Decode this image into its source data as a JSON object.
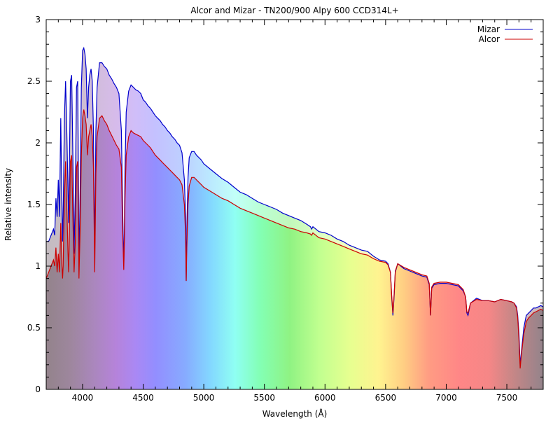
{
  "chart_data": {
    "type": "area",
    "title": "Alcor and Mizar - TN200/900 Alpy 600 CCD314L+",
    "xlabel": "Wavelength (Å)",
    "ylabel": "Relative intensity",
    "xlim": [
      3700,
      7800
    ],
    "ylim": [
      0,
      3
    ],
    "x_ticks": [
      {
        "value": 4000,
        "label": "4000"
      },
      {
        "value": 4500,
        "label": "4500"
      },
      {
        "value": 5000,
        "label": "5000"
      },
      {
        "value": 5500,
        "label": "5500"
      },
      {
        "value": 6000,
        "label": "6000"
      },
      {
        "value": 6500,
        "label": "6500"
      },
      {
        "value": 7000,
        "label": "7000"
      },
      {
        "value": 7500,
        "label": "7500"
      }
    ],
    "y_ticks": [
      {
        "value": 0,
        "label": "0"
      },
      {
        "value": 0.5,
        "label": "0.5"
      },
      {
        "value": 1,
        "label": "1"
      },
      {
        "value": 1.5,
        "label": "1.5"
      },
      {
        "value": 2,
        "label": "2"
      },
      {
        "value": 2.5,
        "label": "2.5"
      },
      {
        "value": 3,
        "label": "3"
      }
    ],
    "legend_position": "top-right",
    "background_fill": "spectrum-colored gradient under each curve",
    "series": [
      {
        "name": "Mizar",
        "color": "#0000cc",
        "x": [
          3700,
          3720,
          3740,
          3760,
          3770,
          3780,
          3790,
          3800,
          3810,
          3820,
          3830,
          3835,
          3840,
          3850,
          3860,
          3870,
          3880,
          3885,
          3890,
          3900,
          3910,
          3920,
          3930,
          3940,
          3950,
          3960,
          3965,
          3970,
          3980,
          3990,
          4000,
          4010,
          4020,
          4030,
          4040,
          4050,
          4060,
          4070,
          4080,
          4090,
          4100,
          4110,
          4120,
          4140,
          4160,
          4180,
          4200,
          4220,
          4240,
          4260,
          4280,
          4300,
          4320,
          4330,
          4340,
          4345,
          4350,
          4360,
          4380,
          4400,
          4420,
          4440,
          4460,
          4480,
          4500,
          4520,
          4540,
          4560,
          4580,
          4600,
          4620,
          4640,
          4660,
          4680,
          4700,
          4720,
          4740,
          4760,
          4780,
          4800,
          4820,
          4840,
          4850,
          4855,
          4860,
          4870,
          4880,
          4900,
          4920,
          4940,
          4960,
          4980,
          5000,
          5050,
          5100,
          5150,
          5200,
          5250,
          5300,
          5350,
          5400,
          5450,
          5500,
          5550,
          5600,
          5650,
          5700,
          5750,
          5800,
          5850,
          5880,
          5890,
          5900,
          5950,
          6000,
          6050,
          6100,
          6150,
          6200,
          6250,
          6300,
          6350,
          6400,
          6450,
          6500,
          6520,
          6540,
          6550,
          6560,
          6570,
          6580,
          6600,
          6650,
          6700,
          6750,
          6800,
          6840,
          6860,
          6870,
          6880,
          6900,
          6950,
          7000,
          7050,
          7100,
          7140,
          7160,
          7170,
          7180,
          7200,
          7250,
          7300,
          7350,
          7400,
          7450,
          7500,
          7540,
          7560,
          7580,
          7590,
          7600,
          7610,
          7620,
          7640,
          7660,
          7680,
          7700,
          7720,
          7740,
          7760,
          7780,
          7800
        ],
        "y": [
          1.2,
          1.2,
          1.25,
          1.3,
          1.25,
          1.55,
          1.4,
          1.7,
          1.4,
          2.2,
          1.5,
          1.2,
          1.4,
          2.2,
          2.5,
          2.1,
          1.6,
          1.35,
          1.7,
          2.5,
          2.55,
          1.9,
          1.1,
          1.6,
          2.45,
          2.5,
          1.8,
          1.0,
          1.6,
          2.45,
          2.75,
          2.77,
          2.72,
          2.6,
          2.2,
          2.45,
          2.55,
          2.6,
          2.5,
          2.1,
          1.1,
          2.1,
          2.45,
          2.65,
          2.65,
          2.62,
          2.6,
          2.55,
          2.52,
          2.48,
          2.45,
          2.4,
          2.1,
          1.5,
          1.0,
          1.3,
          1.8,
          2.25,
          2.42,
          2.47,
          2.45,
          2.43,
          2.42,
          2.4,
          2.35,
          2.33,
          2.3,
          2.28,
          2.25,
          2.22,
          2.2,
          2.18,
          2.15,
          2.13,
          2.1,
          2.08,
          2.05,
          2.03,
          2.0,
          1.98,
          1.92,
          1.7,
          1.4,
          0.88,
          1.3,
          1.72,
          1.88,
          1.93,
          1.93,
          1.9,
          1.88,
          1.86,
          1.83,
          1.79,
          1.75,
          1.71,
          1.68,
          1.64,
          1.6,
          1.58,
          1.55,
          1.52,
          1.5,
          1.48,
          1.46,
          1.43,
          1.41,
          1.39,
          1.37,
          1.34,
          1.32,
          1.3,
          1.32,
          1.28,
          1.27,
          1.25,
          1.22,
          1.2,
          1.17,
          1.15,
          1.13,
          1.12,
          1.08,
          1.05,
          1.04,
          1.02,
          0.95,
          0.75,
          0.6,
          0.75,
          0.95,
          1.02,
          0.98,
          0.96,
          0.94,
          0.92,
          0.91,
          0.85,
          0.6,
          0.82,
          0.85,
          0.86,
          0.86,
          0.85,
          0.84,
          0.8,
          0.75,
          0.62,
          0.6,
          0.7,
          0.74,
          0.72,
          0.72,
          0.71,
          0.73,
          0.72,
          0.71,
          0.7,
          0.67,
          0.6,
          0.45,
          0.2,
          0.3,
          0.5,
          0.6,
          0.62,
          0.64,
          0.66,
          0.66,
          0.67,
          0.68,
          0.67
        ],
        "fill_opacity": 0.4
      },
      {
        "name": "Alcor",
        "color": "#cc0000",
        "x": [
          3700,
          3720,
          3740,
          3760,
          3770,
          3780,
          3790,
          3800,
          3810,
          3820,
          3830,
          3835,
          3840,
          3850,
          3860,
          3870,
          3880,
          3885,
          3890,
          3900,
          3910,
          3920,
          3930,
          3940,
          3950,
          3960,
          3965,
          3970,
          3980,
          3990,
          4000,
          4010,
          4020,
          4030,
          4040,
          4050,
          4060,
          4070,
          4080,
          4090,
          4100,
          4110,
          4120,
          4140,
          4160,
          4180,
          4200,
          4220,
          4240,
          4260,
          4280,
          4300,
          4320,
          4330,
          4340,
          4345,
          4350,
          4360,
          4380,
          4400,
          4420,
          4440,
          4460,
          4480,
          4500,
          4520,
          4540,
          4560,
          4580,
          4600,
          4620,
          4640,
          4660,
          4680,
          4700,
          4720,
          4740,
          4760,
          4780,
          4800,
          4820,
          4840,
          4850,
          4855,
          4860,
          4870,
          4880,
          4900,
          4920,
          4940,
          4960,
          4980,
          5000,
          5050,
          5100,
          5150,
          5200,
          5250,
          5300,
          5350,
          5400,
          5450,
          5500,
          5550,
          5600,
          5650,
          5700,
          5750,
          5800,
          5850,
          5880,
          5890,
          5900,
          5950,
          6000,
          6050,
          6100,
          6150,
          6200,
          6250,
          6300,
          6350,
          6400,
          6450,
          6500,
          6520,
          6540,
          6550,
          6560,
          6570,
          6580,
          6600,
          6650,
          6700,
          6750,
          6800,
          6840,
          6860,
          6870,
          6880,
          6900,
          6950,
          7000,
          7050,
          7100,
          7140,
          7160,
          7170,
          7180,
          7200,
          7250,
          7300,
          7350,
          7400,
          7450,
          7500,
          7540,
          7560,
          7580,
          7590,
          7600,
          7610,
          7620,
          7640,
          7660,
          7680,
          7700,
          7720,
          7740,
          7760,
          7780,
          7800
        ],
        "y": [
          0.9,
          0.95,
          1.0,
          1.05,
          1.0,
          1.15,
          0.95,
          1.1,
          0.95,
          1.35,
          1.0,
          0.9,
          1.0,
          1.55,
          1.85,
          1.5,
          1.1,
          0.95,
          1.2,
          1.85,
          1.9,
          1.4,
          0.95,
          1.2,
          1.8,
          1.85,
          1.4,
          0.9,
          1.3,
          1.9,
          2.2,
          2.27,
          2.22,
          2.15,
          1.9,
          2.05,
          2.1,
          2.15,
          2.05,
          1.8,
          0.95,
          1.75,
          2.05,
          2.2,
          2.22,
          2.18,
          2.15,
          2.1,
          2.06,
          2.02,
          1.98,
          1.95,
          1.8,
          1.3,
          0.97,
          1.2,
          1.55,
          1.9,
          2.05,
          2.1,
          2.08,
          2.07,
          2.06,
          2.05,
          2.02,
          2.0,
          1.98,
          1.96,
          1.93,
          1.9,
          1.88,
          1.86,
          1.84,
          1.82,
          1.8,
          1.78,
          1.76,
          1.74,
          1.72,
          1.7,
          1.66,
          1.5,
          1.25,
          0.88,
          1.15,
          1.5,
          1.65,
          1.72,
          1.72,
          1.7,
          1.68,
          1.66,
          1.64,
          1.61,
          1.58,
          1.55,
          1.53,
          1.5,
          1.47,
          1.45,
          1.43,
          1.41,
          1.39,
          1.37,
          1.35,
          1.33,
          1.31,
          1.3,
          1.28,
          1.27,
          1.26,
          1.25,
          1.27,
          1.23,
          1.22,
          1.2,
          1.18,
          1.16,
          1.14,
          1.12,
          1.1,
          1.09,
          1.06,
          1.04,
          1.03,
          1.01,
          0.95,
          0.77,
          0.62,
          0.77,
          0.96,
          1.02,
          0.99,
          0.97,
          0.95,
          0.93,
          0.92,
          0.86,
          0.6,
          0.83,
          0.86,
          0.87,
          0.87,
          0.86,
          0.85,
          0.81,
          0.75,
          0.63,
          0.62,
          0.7,
          0.73,
          0.72,
          0.72,
          0.71,
          0.73,
          0.72,
          0.71,
          0.7,
          0.66,
          0.58,
          0.4,
          0.17,
          0.28,
          0.45,
          0.55,
          0.58,
          0.6,
          0.62,
          0.63,
          0.64,
          0.65,
          0.64
        ],
        "fill_opacity": 0.55
      }
    ]
  }
}
